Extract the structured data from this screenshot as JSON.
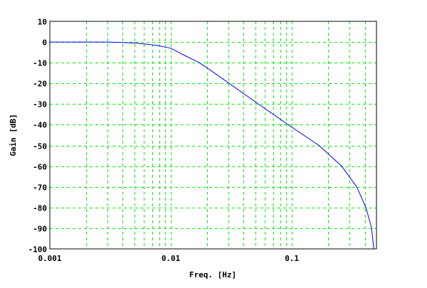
{
  "chart_data": {
    "type": "line",
    "title": "",
    "xlabel": "Freq. [Hz]",
    "ylabel": "Gain [dB]",
    "xscale": "log",
    "xlim": [
      0.001,
      0.5
    ],
    "ylim": [
      -100,
      10
    ],
    "xticks": [
      0.001,
      0.01,
      0.1
    ],
    "xtick_labels": [
      "0.001",
      "0.01",
      "0.1"
    ],
    "yticks": [
      10,
      0,
      -10,
      -20,
      -30,
      -40,
      -50,
      -60,
      -70,
      -80,
      -90,
      -100
    ],
    "ytick_labels": [
      "10",
      "0",
      "-10",
      "-20",
      "-30",
      "-40",
      "-50",
      "-60",
      "-70",
      "-80",
      "-90",
      "-100"
    ],
    "grid": true,
    "grid_color": "#00ee00",
    "series": [
      {
        "color": "#0000ff",
        "x": [
          0.001,
          0.003,
          0.004,
          0.005,
          0.006,
          0.0076,
          0.01,
          0.0125,
          0.0172,
          0.0205,
          0.0304,
          0.053,
          0.0934,
          0.1675,
          0.258,
          0.343,
          0.409,
          0.456,
          0.475
        ],
        "y": [
          0,
          0,
          -0.2,
          -0.5,
          -0.9,
          -1.6,
          -3,
          -6,
          -10,
          -13,
          -20,
          -30,
          -40,
          -50,
          -60,
          -70,
          -80,
          -90,
          -100
        ]
      }
    ]
  }
}
